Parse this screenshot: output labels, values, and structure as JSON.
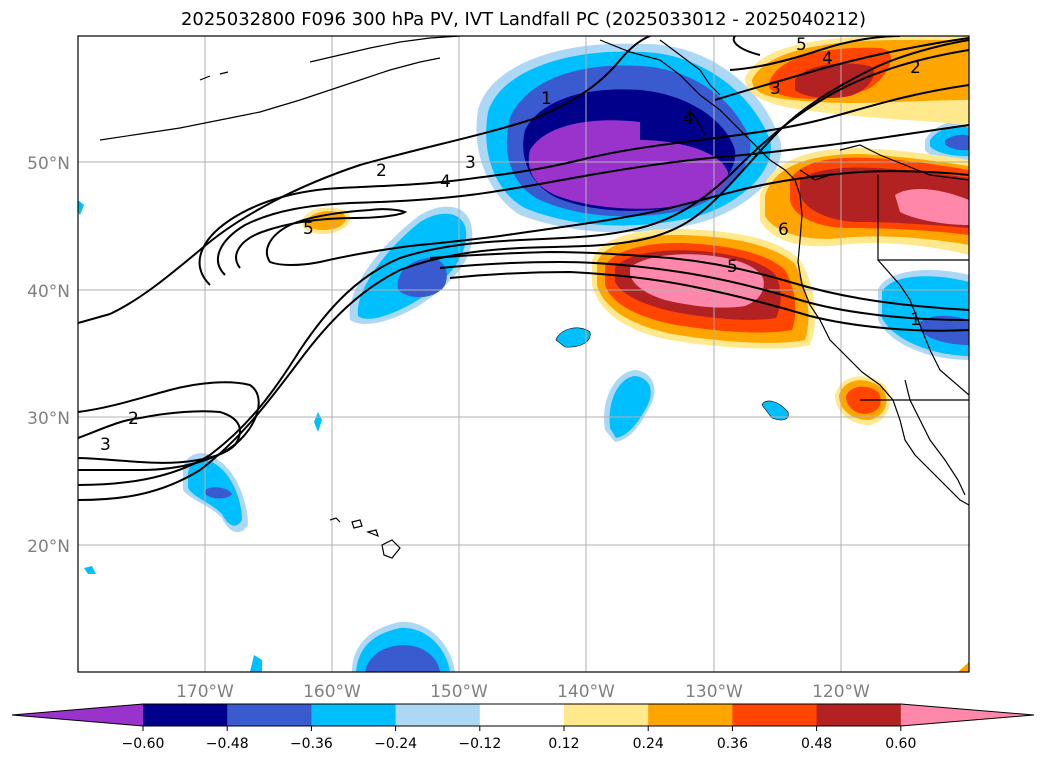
{
  "title": "2025032800 F096 300 hPa PV, IVT Landfall PC (2025033012 - 2025040212)",
  "lon_labels": [
    "170°W",
    "160°W",
    "150°W",
    "140°W",
    "130°W",
    "120°W"
  ],
  "lat_labels": [
    "50°N",
    "40°N",
    "30°N",
    "20°N"
  ],
  "contour_labels": [
    {
      "text": "1",
      "id": "c1a"
    },
    {
      "text": "2",
      "id": "c2a"
    },
    {
      "text": "3",
      "id": "c3a"
    },
    {
      "text": "4",
      "id": "c4a"
    },
    {
      "text": "5",
      "id": "c5a"
    },
    {
      "text": "5",
      "id": "c5b"
    },
    {
      "text": "2",
      "id": "c2b"
    },
    {
      "text": "3",
      "id": "c3b"
    },
    {
      "text": "4",
      "id": "c4b"
    },
    {
      "text": "5",
      "id": "c5c"
    },
    {
      "text": "2",
      "id": "c2c"
    },
    {
      "text": "3",
      "id": "c3c"
    },
    {
      "text": "1",
      "id": "c1b"
    },
    {
      "text": "6",
      "id": "c6a"
    },
    {
      "text": "4",
      "id": "c4c"
    }
  ],
  "colorbar": {
    "ticks": [
      "−0.60",
      "−0.48",
      "−0.36",
      "−0.24",
      "−0.12",
      "0.12",
      "0.24",
      "0.36",
      "0.48",
      "0.60"
    ],
    "colors": [
      "#9933cc",
      "#00008b",
      "#3a5bcf",
      "#00bfff",
      "#add8f5",
      "#ffffff",
      "#ffe98c",
      "#ffa500",
      "#ff4500",
      "#b22222",
      "#ff88aa"
    ]
  },
  "palette": {
    "contour_line": "#000000",
    "grid": "#b0b0b0",
    "coast": "#000000"
  }
}
